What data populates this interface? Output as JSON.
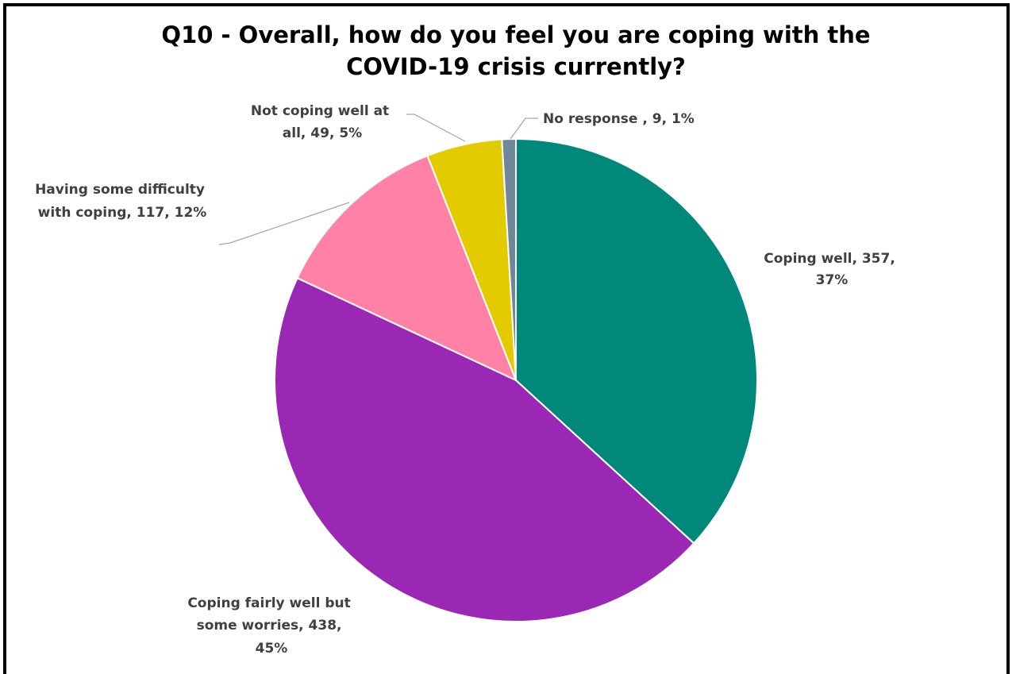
{
  "chart_data": {
    "type": "pie",
    "title_lines": [
      "Q10 - Overall, how do you feel you are coping with the",
      "COVID-19 crisis currently?"
    ],
    "categories": [
      "Coping well",
      "Coping fairly well but some worries",
      "Having some difficulty with coping",
      "Not coping well at all",
      "No response "
    ],
    "values": [
      357,
      438,
      117,
      49,
      9
    ],
    "percent_labels": [
      "37%",
      "45%",
      "12%",
      "5%",
      "1%"
    ],
    "colors": [
      "#00897b",
      "#9b27b5",
      "#ff82a6",
      "#e2cc00",
      "#6f8899"
    ],
    "data_labels": [
      {
        "lines": [
          "Coping well, 357,",
          "37%"
        ]
      },
      {
        "lines": [
          "Coping fairly well but",
          "some worries, 438,",
          "45%"
        ]
      },
      {
        "lines": [
          "Having some difficulty",
          "with coping, 117, 12%"
        ]
      },
      {
        "lines": [
          "Not coping well at",
          "all, 49, 5%"
        ]
      },
      {
        "lines": [
          "No response , 9, 1%"
        ]
      }
    ],
    "start_angle": "12 o'clock",
    "direction": "clockwise",
    "legend": "none"
  }
}
